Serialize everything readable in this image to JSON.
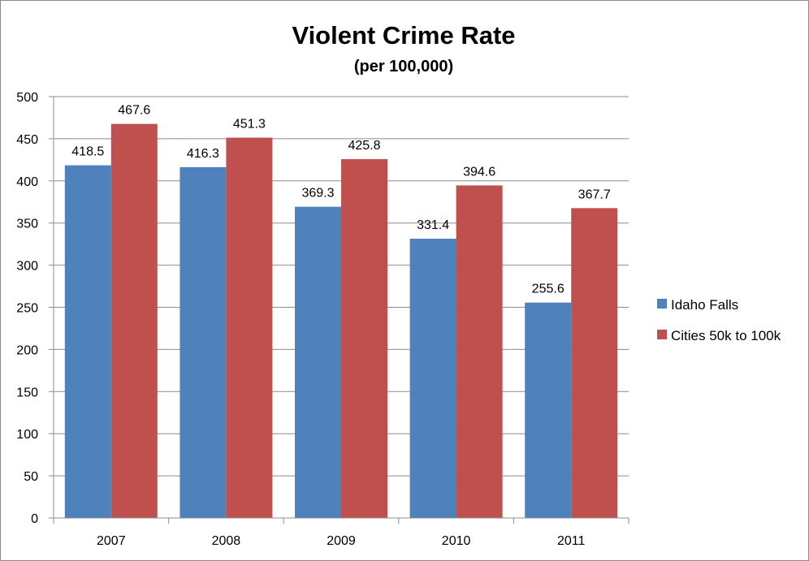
{
  "chart_data": {
    "type": "bar",
    "title": "Violent Crime Rate",
    "subtitle": "(per 100,000)",
    "xlabel": "",
    "ylabel": "",
    "categories": [
      "2007",
      "2008",
      "2009",
      "2010",
      "2011"
    ],
    "series": [
      {
        "name": "Idaho Falls",
        "color": "#4f81bd",
        "values": [
          418.5,
          416.3,
          369.3,
          331.4,
          255.6
        ]
      },
      {
        "name": "Cities 50k to 100k",
        "color": "#c0504d",
        "values": [
          467.6,
          451.3,
          425.8,
          394.6,
          367.7
        ]
      }
    ],
    "ylim": [
      0,
      500
    ],
    "yticks": [
      0,
      50,
      100,
      150,
      200,
      250,
      300,
      350,
      400,
      450,
      500
    ],
    "grid": true,
    "legend": "right",
    "data_labels": true
  }
}
